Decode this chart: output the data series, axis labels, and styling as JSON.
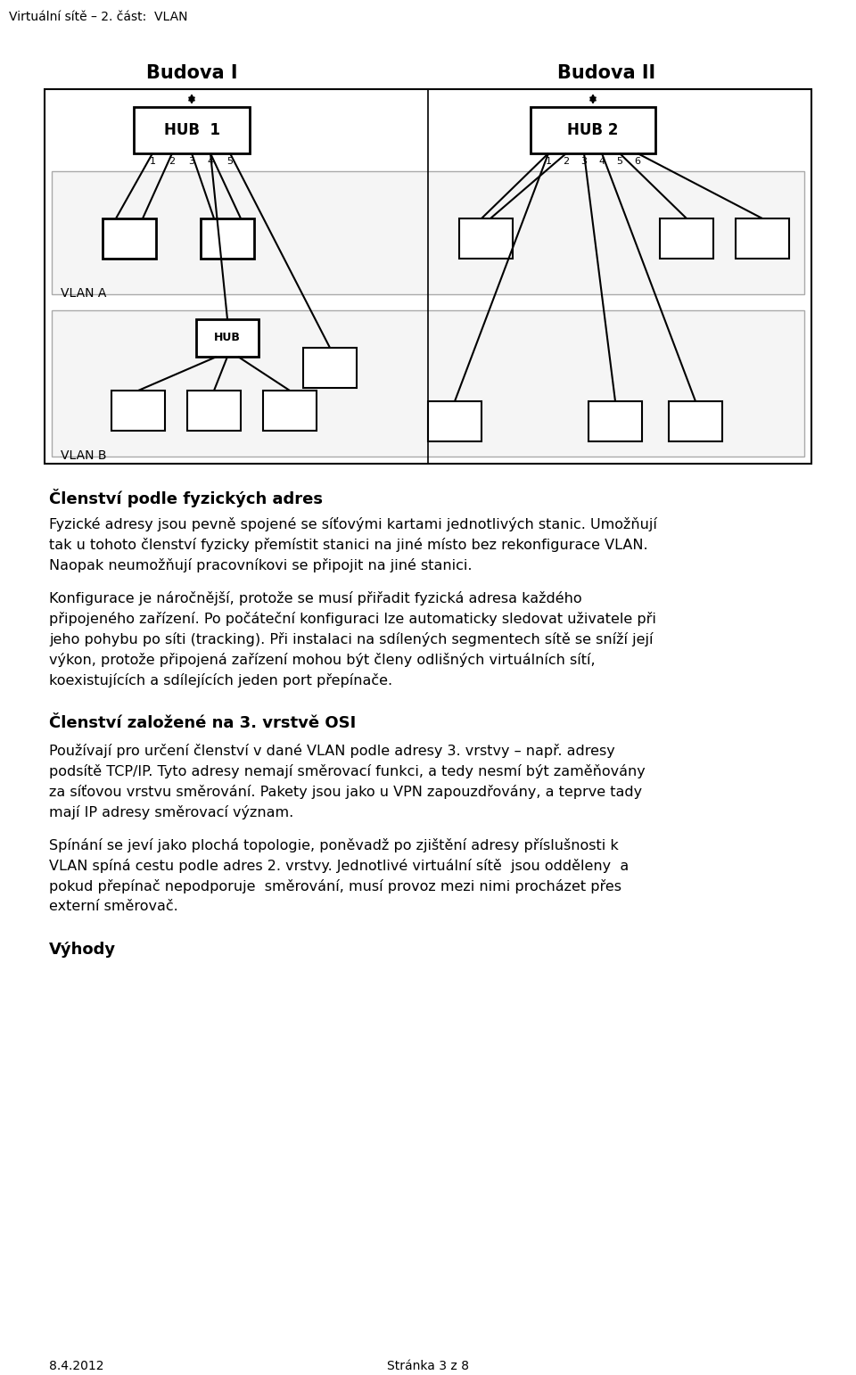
{
  "header_text": "Virtuální sítě – 2. část:  VLAN",
  "budova_I": "Budova I",
  "budova_II": "Budova II",
  "hub1_label": "HUB  1",
  "hub2_label": "HUB 2",
  "hub_b_label": "HUB",
  "vlan_a_label": "VLAN A",
  "vlan_b_label": "VLAN B",
  "port_labels_1": [
    "1",
    "2",
    "3",
    "4",
    "5"
  ],
  "port_labels_2": [
    "1",
    "2",
    "3",
    "4",
    "5",
    "6"
  ],
  "section1_heading": "Členství podle fyzických adres",
  "para1_lines": [
    "Fyzické adresy jsou pevně spojené se síťovými kartami jednotlivých stanic. Umožňují",
    "tak u tohoto členství fyzicky přemístit stanici na jiné místo bez rekonfigurace VLAN.",
    "Naopak neumožňují pracovníkovi se připojit na jiné stanici."
  ],
  "para2_lines": [
    "Konfigurace je náročnější, protože se musí přiřadit fyzická adresa každého",
    "připojeného zařízení. Po počáteční konfiguraci lze automaticky sledovat uživatele při",
    "jeho pohybu po síti (tracking). Při instalaci na sdílených segmentech sítě se sníží její",
    "výkon, protože připojená zařízení mohou být členy odlišných virtuálních sítí,",
    "koexistujících a sdílejících jeden port přepínače."
  ],
  "section2_heading": "Členství založené na 3. vrstvě OSI",
  "para3_lines": [
    "Používají pro určení členství v dané VLAN podle adresy 3. vrstvy – např. adresy",
    "podsítě TCP/IP. Tyto adresy nemají směrovací funkci, a tedy nesmí být zaměňovány",
    "za síťovou vrstvu směrování. Pakety jsou jako u VPN zapouzdřovány, a teprve tady",
    "mají IP adresy směrovací význam."
  ],
  "para4_lines": [
    "Spínání se jeví jako plochá topologie, poněvadž po zjištění adresy příslušnosti k",
    "VLAN spíná cestu podle adres 2. vrstvy. Jednotlivé virtuální sítě  jsou odděleny  a",
    "pokud přepínač nepodporuje  směrování, musí provoz mezi nimi procházet přes",
    "externí směrovač."
  ],
  "section3_heading": "Výhody",
  "footer_left": "8.4.2012",
  "footer_center": "Stránka 3 z 8"
}
